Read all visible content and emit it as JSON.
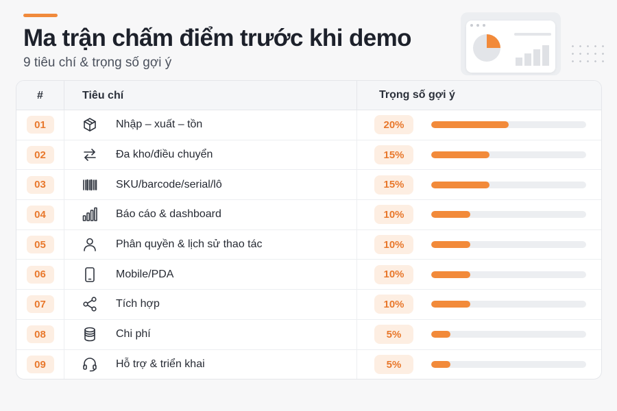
{
  "header": {
    "title": "Ma trận chấm điểm trước khi demo",
    "subtitle": "9 tiêu chí & trọng số gợi ý",
    "accent_color": "#f08a3c"
  },
  "table": {
    "columns": [
      "#",
      "Tiêu chí",
      "Trọng số gợi ý"
    ],
    "rows": [
      {
        "num": "01",
        "icon": "box-icon",
        "label": "Nhập – xuất – tồn",
        "weight_text": "20%",
        "weight": 0.2
      },
      {
        "num": "02",
        "icon": "swap-arrows-icon",
        "label": "Đa kho/điều chuyển",
        "weight_text": "15%",
        "weight": 0.15
      },
      {
        "num": "03",
        "icon": "barcode-icon",
        "label": "SKU/barcode/serial/lô",
        "weight_text": "15%",
        "weight": 0.15
      },
      {
        "num": "04",
        "icon": "bar-chart-icon",
        "label": "Báo cáo & dashboard",
        "weight_text": "10%",
        "weight": 0.1
      },
      {
        "num": "05",
        "icon": "user-icon",
        "label": "Phân quyền & lịch sử thao tác",
        "weight_text": "10%",
        "weight": 0.1
      },
      {
        "num": "06",
        "icon": "mobile-icon",
        "label": "Mobile/PDA",
        "weight_text": "10%",
        "weight": 0.1
      },
      {
        "num": "07",
        "icon": "share-icon",
        "label": "Tích hợp",
        "weight_text": "10%",
        "weight": 0.1
      },
      {
        "num": "08",
        "icon": "coins-icon",
        "label": "Chi phí",
        "weight_text": "5%",
        "weight": 0.05
      },
      {
        "num": "09",
        "icon": "headset-icon",
        "label": "Hỗ trợ & triển khai",
        "weight_text": "5%",
        "weight": 0.05
      }
    ]
  },
  "colors": {
    "badge_bg": "#fdeee2",
    "badge_text": "#e8782c",
    "bar_fill": "#f28a3a",
    "bar_track": "#eceef1"
  }
}
